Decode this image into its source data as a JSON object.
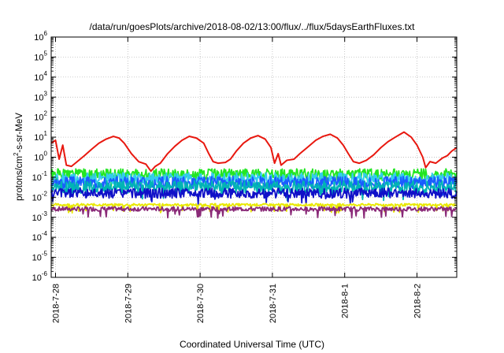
{
  "chart_data": {
    "type": "line",
    "title": "/data/run/goesPlots/archive/2018-08-02/13:00/flux/../flux/5daysEarthFluxes.txt",
    "xlabel": "Coordinated Universal Time (UTC)",
    "ylabel": {
      "before": "protons/cm",
      "sup": "2",
      "after": "-s-sr-MeV"
    },
    "yscale": "log",
    "ylim": [
      1e-06,
      1000000.0
    ],
    "y_ticks": [
      {
        "exp": "-6",
        "value": 1e-06
      },
      {
        "exp": "-5",
        "value": 1e-05
      },
      {
        "exp": "-4",
        "value": 0.0001
      },
      {
        "exp": "-3",
        "value": 0.001
      },
      {
        "exp": "-2",
        "value": 0.01
      },
      {
        "exp": "-1",
        "value": 0.1
      },
      {
        "exp": "0",
        "value": 1
      },
      {
        "exp": "1",
        "value": 10
      },
      {
        "exp": "2",
        "value": 100
      },
      {
        "exp": "3",
        "value": 1000
      },
      {
        "exp": "4",
        "value": 10000
      },
      {
        "exp": "5",
        "value": 100000
      },
      {
        "exp": "6",
        "value": 1000000
      }
    ],
    "y_tick_base": "10",
    "xlim": [
      -0.06,
      5.55
    ],
    "x_ticks": [
      {
        "label": "2018-7-28",
        "value": 0
      },
      {
        "label": "2018-7-29",
        "value": 1
      },
      {
        "label": "2018-7-30",
        "value": 2
      },
      {
        "label": "2018-7-31",
        "value": 3
      },
      {
        "label": "2018-8-1",
        "value": 4
      },
      {
        "label": "2018-8-2",
        "value": 5
      }
    ],
    "grid": true,
    "legend": "none",
    "series": [
      {
        "color": "#e8180f",
        "points": [
          [
            -0.06,
            5
          ],
          [
            0,
            7
          ],
          [
            0.05,
            0.8
          ],
          [
            0.1,
            4
          ],
          [
            0.15,
            0.4
          ],
          [
            0.22,
            0.35
          ],
          [
            0.3,
            0.6
          ],
          [
            0.4,
            1.2
          ],
          [
            0.5,
            2.5
          ],
          [
            0.6,
            5
          ],
          [
            0.7,
            8
          ],
          [
            0.8,
            11
          ],
          [
            0.88,
            9
          ],
          [
            0.95,
            5
          ],
          [
            1.05,
            1.5
          ],
          [
            1.15,
            0.6
          ],
          [
            1.25,
            0.45
          ],
          [
            1.32,
            0.2
          ],
          [
            1.38,
            0.35
          ],
          [
            1.45,
            0.5
          ],
          [
            1.55,
            1.5
          ],
          [
            1.65,
            3.5
          ],
          [
            1.75,
            7
          ],
          [
            1.85,
            11
          ],
          [
            1.95,
            9
          ],
          [
            2.05,
            5
          ],
          [
            2.12,
            1.5
          ],
          [
            2.18,
            0.6
          ],
          [
            2.25,
            0.5
          ],
          [
            2.35,
            0.55
          ],
          [
            2.42,
            0.8
          ],
          [
            2.5,
            2
          ],
          [
            2.6,
            5
          ],
          [
            2.7,
            9
          ],
          [
            2.8,
            12
          ],
          [
            2.9,
            8
          ],
          [
            2.98,
            3
          ],
          [
            3.03,
            0.5
          ],
          [
            3.08,
            1.5
          ],
          [
            3.12,
            0.4
          ],
          [
            3.2,
            0.7
          ],
          [
            3.3,
            0.8
          ],
          [
            3.38,
            1.5
          ],
          [
            3.48,
            3
          ],
          [
            3.6,
            7
          ],
          [
            3.7,
            11
          ],
          [
            3.8,
            14
          ],
          [
            3.9,
            9
          ],
          [
            3.98,
            4
          ],
          [
            4.05,
            1.5
          ],
          [
            4.12,
            0.6
          ],
          [
            4.2,
            0.5
          ],
          [
            4.3,
            0.7
          ],
          [
            4.4,
            1.3
          ],
          [
            4.5,
            3
          ],
          [
            4.6,
            6
          ],
          [
            4.7,
            10
          ],
          [
            4.82,
            18
          ],
          [
            4.92,
            10
          ],
          [
            5.0,
            4
          ],
          [
            5.08,
            1
          ],
          [
            5.12,
            0.3
          ],
          [
            5.18,
            0.6
          ],
          [
            5.26,
            0.5
          ],
          [
            5.35,
            0.9
          ],
          [
            5.42,
            1.2
          ],
          [
            5.48,
            2
          ],
          [
            5.55,
            3
          ]
        ]
      },
      {
        "color": "#22e622",
        "base": 0.14,
        "amp": 0.55,
        "seed": 1
      },
      {
        "color": "#33ccee",
        "base": 0.085,
        "amp": 0.6,
        "seed": 2
      },
      {
        "color": "#1a5cff",
        "base": 0.055,
        "amp": 0.6,
        "seed": 3
      },
      {
        "color": "#00b4b4",
        "base": 0.032,
        "amp": 0.65,
        "seed": 4
      },
      {
        "color": "#1010c8",
        "base": 0.016,
        "amp": 0.5,
        "seed": 5
      },
      {
        "color": "#e8e800",
        "base": 0.0042,
        "amp": 0.12,
        "seed": 6
      },
      {
        "color": "#8a2a78",
        "base": 0.0026,
        "amp": 0.22,
        "seed": 7
      }
    ]
  }
}
